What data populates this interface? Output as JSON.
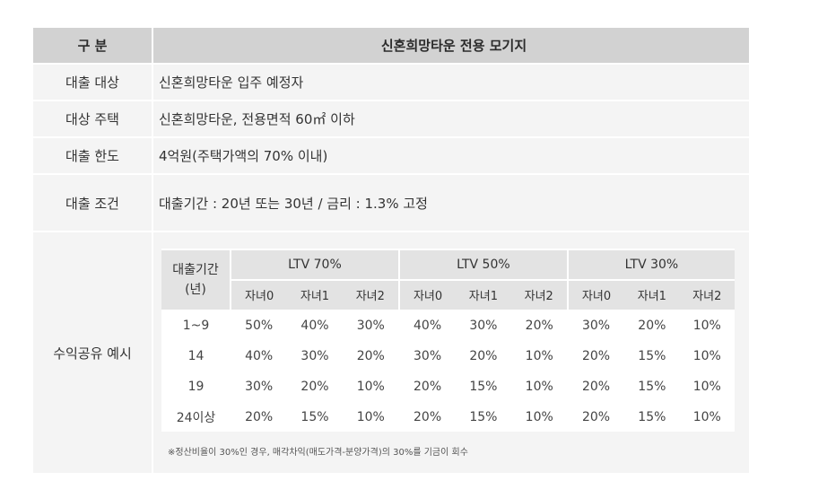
{
  "header": {
    "col1": "구 분",
    "col2": "신혼희망타운 전용 모기지"
  },
  "rows": [
    {
      "label": "대출 대상",
      "value": "신혼희망타운 입주 예정자"
    },
    {
      "label": "대상 주택",
      "value": "신혼희망타운, 전용면적 60㎡ 이하"
    },
    {
      "label": "대출 한도",
      "value": "4억원(주택가액의 70% 이내)"
    },
    {
      "label": "대출 조건",
      "value": "대출기간 : 20년 또는 30년 / 금리 : 1.3% 고정"
    }
  ],
  "profit_share": {
    "label": "수익공유 예시",
    "period_header": "대출기간\n(년)",
    "groups": [
      "LTV 70%",
      "LTV 50%",
      "LTV 30%"
    ],
    "sub_headers": [
      "자녀0",
      "자녀1",
      "자녀2",
      "자녀0",
      "자녀1",
      "자녀2",
      "자녀0",
      "자녀1",
      "자녀2"
    ],
    "table": [
      {
        "period": "1~9",
        "values": [
          "50%",
          "40%",
          "30%",
          "40%",
          "30%",
          "20%",
          "30%",
          "20%",
          "10%"
        ]
      },
      {
        "period": "14",
        "values": [
          "40%",
          "30%",
          "20%",
          "30%",
          "20%",
          "10%",
          "20%",
          "15%",
          "10%"
        ]
      },
      {
        "period": "19",
        "values": [
          "30%",
          "20%",
          "10%",
          "20%",
          "15%",
          "10%",
          "20%",
          "15%",
          "10%"
        ]
      },
      {
        "period": "24이상",
        "values": [
          "20%",
          "15%",
          "10%",
          "20%",
          "15%",
          "10%",
          "20%",
          "15%",
          "10%"
        ]
      }
    ],
    "note": "※정산비율이 30%인 경우, 매각차익(매도가격-분양가격)의 30%를 기금이 회수"
  }
}
